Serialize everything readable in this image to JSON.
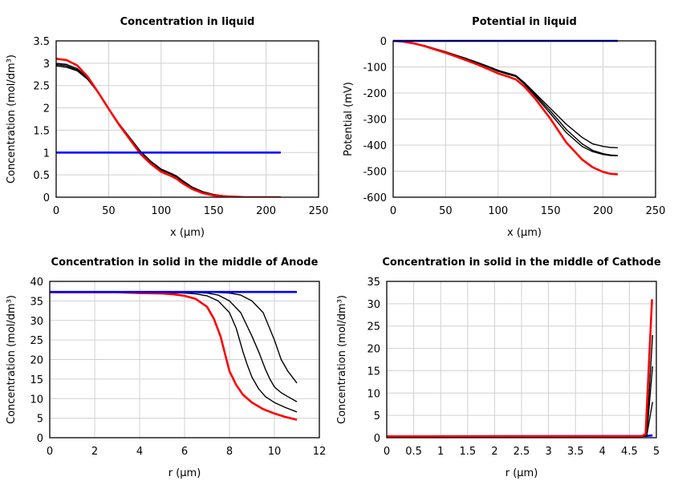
{
  "chart_data": [
    {
      "type": "line",
      "title": "Concentration in liquid",
      "xlabel": "x (µm)",
      "ylabel": "Concentration (mol/dm³)",
      "xlim": [
        0,
        250
      ],
      "ylim": [
        0,
        3.5
      ],
      "xticks": [
        "0",
        "50",
        "100",
        "150",
        "200",
        "250"
      ],
      "yticks": [
        "0",
        "0.5",
        "1",
        "1.5",
        "2",
        "2.5",
        "3",
        "3.5"
      ],
      "grid": true,
      "series": [
        {
          "color": "#000000",
          "x": [
            0,
            10,
            20,
            30,
            40,
            50,
            60,
            70,
            80,
            90,
            100,
            110,
            115,
            120,
            130,
            140,
            150,
            160,
            170,
            180,
            200,
            214
          ],
          "y": [
            2.94,
            2.91,
            2.83,
            2.64,
            2.34,
            1.98,
            1.64,
            1.34,
            1.04,
            0.81,
            0.63,
            0.53,
            0.47,
            0.38,
            0.22,
            0.12,
            0.06,
            0.03,
            0.01,
            0,
            0,
            0
          ]
        },
        {
          "color": "#000000",
          "x": [
            0,
            10,
            20,
            30,
            40,
            50,
            60,
            70,
            80,
            90,
            100,
            110,
            115,
            120,
            130,
            140,
            150,
            160,
            170,
            180,
            200,
            214
          ],
          "y": [
            2.97,
            2.94,
            2.85,
            2.66,
            2.35,
            1.98,
            1.64,
            1.33,
            1.03,
            0.8,
            0.62,
            0.52,
            0.46,
            0.37,
            0.22,
            0.12,
            0.06,
            0.03,
            0.01,
            0,
            0,
            0
          ]
        },
        {
          "color": "#000000",
          "x": [
            0,
            10,
            20,
            30,
            40,
            50,
            60,
            70,
            80,
            90,
            100,
            110,
            115,
            120,
            130,
            140,
            150,
            160,
            170,
            180,
            200,
            214
          ],
          "y": [
            3.0,
            2.97,
            2.88,
            2.67,
            2.35,
            1.98,
            1.63,
            1.32,
            1.02,
            0.79,
            0.61,
            0.51,
            0.45,
            0.36,
            0.21,
            0.11,
            0.05,
            0.02,
            0.01,
            0,
            0,
            0
          ]
        },
        {
          "color": "#ff0000",
          "x": [
            0,
            10,
            20,
            30,
            40,
            50,
            60,
            70,
            80,
            90,
            100,
            110,
            115,
            120,
            130,
            140,
            150,
            160,
            170,
            180,
            200,
            214
          ],
          "y": [
            3.1,
            3.07,
            2.95,
            2.7,
            2.35,
            1.98,
            1.62,
            1.3,
            0.98,
            0.75,
            0.57,
            0.47,
            0.41,
            0.32,
            0.18,
            0.09,
            0.04,
            0.02,
            0.01,
            0,
            0,
            0
          ]
        },
        {
          "color": "#0000ff",
          "x": [
            0,
            214
          ],
          "y": [
            1,
            1
          ]
        }
      ]
    },
    {
      "type": "line",
      "title": "Potential in liquid",
      "xlabel": "x (µm)",
      "ylabel": "Potential (mV)",
      "xlim": [
        0,
        250
      ],
      "ylim": [
        -600,
        0
      ],
      "xticks": [
        "0",
        "50",
        "100",
        "150",
        "200",
        "250"
      ],
      "yticks": [
        "-600",
        "-500",
        "-400",
        "-300",
        "-200",
        "-100",
        "0"
      ],
      "grid": true,
      "series": [
        {
          "color": "#000000",
          "x": [
            0,
            10,
            20,
            30,
            40,
            50,
            60,
            70,
            80,
            90,
            100,
            110,
            117,
            125,
            135,
            150,
            165,
            180,
            190,
            200,
            207,
            214
          ],
          "y": [
            0,
            -3,
            -9,
            -18,
            -30,
            -42,
            -55,
            -68,
            -82,
            -97,
            -113,
            -125,
            -133,
            -160,
            -200,
            -260,
            -320,
            -370,
            -395,
            -405,
            -409,
            -410
          ]
        },
        {
          "color": "#000000",
          "x": [
            0,
            10,
            20,
            30,
            40,
            50,
            60,
            70,
            80,
            90,
            100,
            110,
            117,
            125,
            135,
            150,
            165,
            180,
            190,
            200,
            207,
            214
          ],
          "y": [
            0,
            -3,
            -9,
            -19,
            -31,
            -43,
            -56,
            -70,
            -84,
            -99,
            -115,
            -127,
            -135,
            -163,
            -205,
            -270,
            -340,
            -395,
            -420,
            -433,
            -438,
            -440
          ]
        },
        {
          "color": "#000000",
          "x": [
            0,
            10,
            20,
            30,
            40,
            50,
            60,
            70,
            80,
            90,
            100,
            110,
            117,
            125,
            135,
            150,
            165,
            180,
            190,
            200,
            207,
            214
          ],
          "y": [
            0,
            -3,
            -9,
            -19,
            -31,
            -44,
            -57,
            -71,
            -85,
            -100,
            -117,
            -129,
            -137,
            -166,
            -210,
            -280,
            -352,
            -405,
            -425,
            -436,
            -440,
            -441
          ]
        },
        {
          "color": "#ff0000",
          "x": [
            0,
            10,
            20,
            30,
            40,
            50,
            60,
            70,
            80,
            90,
            100,
            110,
            117,
            125,
            135,
            150,
            165,
            180,
            190,
            200,
            207,
            214
          ],
          "y": [
            0,
            -3,
            -10,
            -20,
            -33,
            -46,
            -60,
            -75,
            -90,
            -107,
            -125,
            -138,
            -148,
            -175,
            -220,
            -300,
            -390,
            -455,
            -485,
            -503,
            -510,
            -512
          ]
        },
        {
          "color": "#0000ff",
          "x": [
            0,
            214
          ],
          "y": [
            0,
            0
          ]
        }
      ]
    },
    {
      "type": "line",
      "title": "Concentration in solid in the middle of Anode",
      "xlabel": "r (µm)",
      "ylabel": "Concentration (mol/dm³)",
      "xlim": [
        0,
        12
      ],
      "ylim": [
        0,
        40
      ],
      "xticks": [
        "0",
        "2",
        "4",
        "6",
        "8",
        "10",
        "12"
      ],
      "yticks": [
        "0",
        "5",
        "10",
        "15",
        "20",
        "25",
        "30",
        "35",
        "40"
      ],
      "grid": true,
      "series": [
        {
          "color": "#000000",
          "x": [
            0,
            4,
            5,
            6,
            6.5,
            7,
            7.5,
            8,
            8.3,
            8.6,
            8.8,
            9,
            9.3,
            9.6,
            10,
            10.5,
            11
          ],
          "y": [
            37.3,
            37.2,
            37.1,
            37,
            36.8,
            36.3,
            35,
            32,
            28,
            22,
            18.5,
            15.5,
            12.5,
            10.5,
            9,
            7.7,
            6.6
          ]
        },
        {
          "color": "#000000",
          "x": [
            0,
            6,
            7,
            7.5,
            8,
            8.5,
            9,
            9.3,
            9.6,
            9.8,
            10,
            10.3,
            10.6,
            11
          ],
          "y": [
            37.3,
            37.3,
            37,
            36.5,
            35,
            32,
            26,
            22,
            17.5,
            15,
            13,
            11.5,
            10.5,
            9.2
          ]
        },
        {
          "color": "#000000",
          "x": [
            0,
            7,
            8,
            8.5,
            9,
            9.5,
            10,
            10.3,
            10.6,
            10.8,
            11
          ],
          "y": [
            37.3,
            37.3,
            37,
            36.5,
            35,
            32,
            25,
            20,
            17,
            15.5,
            14
          ]
        },
        {
          "color": "#ff0000",
          "x": [
            0,
            3,
            4,
            5,
            5.5,
            6,
            6.5,
            7,
            7.3,
            7.6,
            7.8,
            8,
            8.3,
            8.6,
            9,
            9.5,
            10,
            10.5,
            11
          ],
          "y": [
            37.2,
            37.2,
            37,
            36.9,
            36.7,
            36.3,
            35.5,
            33.5,
            30.5,
            26,
            21.5,
            17,
            13.5,
            11,
            9,
            7.3,
            6.2,
            5.3,
            4.6
          ]
        },
        {
          "color": "#0000ff",
          "x": [
            0,
            11
          ],
          "y": [
            37.3,
            37.3
          ]
        }
      ]
    },
    {
      "type": "line",
      "title": "Concentration in solid in the middle of Cathode",
      "xlabel": "r (µm)",
      "ylabel": "Concentration (mol/dm³)",
      "xlim": [
        0,
        5
      ],
      "ylim": [
        0,
        35
      ],
      "xticks": [
        "0",
        "0.5",
        "1",
        "1.5",
        "2",
        "2.5",
        "3",
        "3.5",
        "4",
        "4.5",
        "5"
      ],
      "yticks": [
        "0",
        "5",
        "10",
        "15",
        "20",
        "25",
        "30",
        "35"
      ],
      "grid": true,
      "series": [
        {
          "color": "#0000ff",
          "x": [
            0,
            4.8,
            4.93
          ],
          "y": [
            0.3,
            0.4,
            0.5
          ]
        },
        {
          "color": "#000000",
          "x": [
            0,
            4.75,
            4.82,
            4.93
          ],
          "y": [
            0.3,
            0.3,
            0.5,
            23
          ]
        },
        {
          "color": "#000000",
          "x": [
            0,
            4.75,
            4.82,
            4.93
          ],
          "y": [
            0.3,
            0.3,
            0.4,
            16
          ]
        },
        {
          "color": "#000000",
          "x": [
            0,
            4.75,
            4.82,
            4.93
          ],
          "y": [
            0.3,
            0.3,
            0.35,
            8
          ]
        },
        {
          "color": "#ff0000",
          "x": [
            0,
            4.72,
            4.8,
            4.92
          ],
          "y": [
            0.3,
            0.3,
            0.8,
            31
          ]
        }
      ]
    }
  ]
}
